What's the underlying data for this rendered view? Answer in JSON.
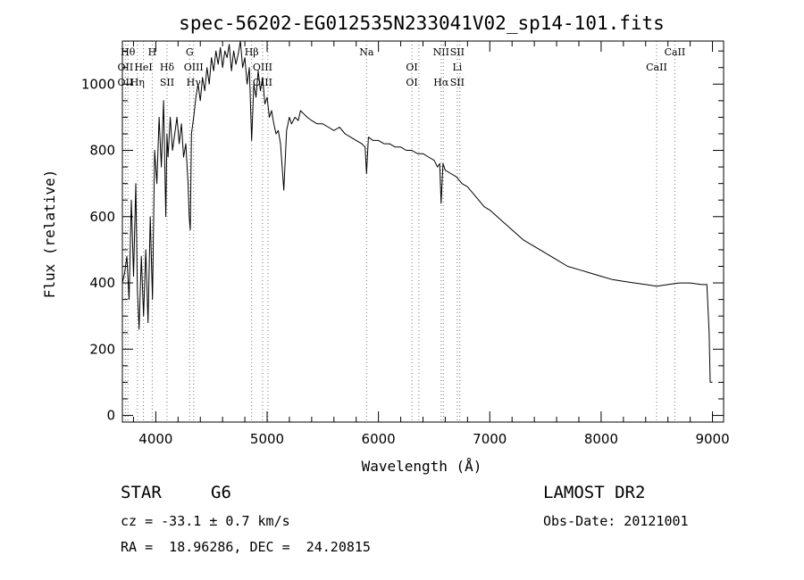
{
  "chart_data": {
    "type": "line",
    "title": "spec-56202-EG012535N233041V02_sp14-101.fits",
    "xlabel": "Wavelength (Å)",
    "ylabel": "Flux (relative)",
    "xlim": [
      3700,
      9100
    ],
    "ylim": [
      -20,
      1130
    ],
    "x_ticks": [
      4000,
      5000,
      6000,
      7000,
      8000,
      9000
    ],
    "x_tick_labels": [
      "4000",
      "5000",
      "6000",
      "7000",
      "8000",
      "9000"
    ],
    "y_ticks": [
      0,
      200,
      400,
      600,
      800,
      1000
    ],
    "y_tick_labels": [
      "0",
      "200",
      "400",
      "600",
      "800",
      "1000"
    ],
    "grid": false,
    "series": [
      {
        "x": [
          3700,
          3720,
          3740,
          3760,
          3780,
          3800,
          3820,
          3835,
          3850,
          3870,
          3890,
          3910,
          3930,
          3950,
          3970,
          3990,
          4010,
          4030,
          4050,
          4070,
          4090,
          4100,
          4110,
          4130,
          4150,
          4170,
          4190,
          4210,
          4230,
          4250,
          4270,
          4290,
          4300,
          4310,
          4320,
          4340,
          4360,
          4380,
          4400,
          4420,
          4440,
          4460,
          4480,
          4500,
          4520,
          4540,
          4560,
          4580,
          4600,
          4620,
          4640,
          4660,
          4680,
          4700,
          4720,
          4740,
          4760,
          4780,
          4800,
          4820,
          4840,
          4861,
          4880,
          4900,
          4920,
          4940,
          4960,
          4980,
          5000,
          5020,
          5040,
          5060,
          5080,
          5100,
          5120,
          5150,
          5175,
          5200,
          5220,
          5250,
          5280,
          5300,
          5330,
          5360,
          5400,
          5450,
          5500,
          5550,
          5600,
          5650,
          5700,
          5750,
          5800,
          5850,
          5880,
          5893,
          5910,
          5950,
          6000,
          6050,
          6100,
          6150,
          6200,
          6250,
          6300,
          6350,
          6400,
          6450,
          6500,
          6530,
          6550,
          6563,
          6580,
          6600,
          6650,
          6700,
          6750,
          6800,
          6850,
          6900,
          6950,
          7000,
          7100,
          7200,
          7300,
          7400,
          7500,
          7600,
          7700,
          7800,
          7900,
          8000,
          8100,
          8200,
          8300,
          8400,
          8500,
          8600,
          8700,
          8800,
          8900,
          8950,
          8970,
          8980,
          9000
        ],
        "values": [
          400,
          430,
          480,
          350,
          650,
          420,
          700,
          380,
          260,
          480,
          300,
          500,
          280,
          600,
          350,
          800,
          700,
          900,
          750,
          950,
          600,
          850,
          780,
          900,
          800,
          850,
          900,
          820,
          880,
          780,
          820,
          700,
          600,
          560,
          850,
          900,
          960,
          1000,
          950,
          1020,
          980,
          1050,
          1000,
          1080,
          1040,
          1100,
          1060,
          1110,
          1050,
          1100,
          1080,
          1120,
          1040,
          1100,
          1060,
          1090,
          1130,
          1050,
          1080,
          1000,
          1050,
          830,
          1000,
          960,
          1040,
          980,
          1020,
          940,
          960,
          900,
          920,
          880,
          850,
          860,
          820,
          680,
          860,
          900,
          880,
          900,
          890,
          920,
          910,
          900,
          890,
          880,
          880,
          870,
          860,
          870,
          850,
          840,
          830,
          820,
          810,
          730,
          840,
          830,
          830,
          820,
          820,
          810,
          810,
          800,
          800,
          790,
          790,
          780,
          770,
          750,
          760,
          640,
          760,
          740,
          730,
          720,
          700,
          690,
          670,
          650,
          630,
          620,
          590,
          560,
          530,
          510,
          490,
          470,
          450,
          440,
          430,
          420,
          410,
          405,
          400,
          395,
          390,
          395,
          400,
          400,
          395,
          395,
          250,
          100,
          100
        ]
      }
    ],
    "line_markers": [
      {
        "wavelength": 3727,
        "labels": [
          "OII",
          "OII"
        ],
        "levels": [
          2,
          3
        ]
      },
      {
        "wavelength": 3750,
        "labels": [
          "Hθ"
        ],
        "levels": [
          1
        ]
      },
      {
        "wavelength": 3835,
        "labels": [
          "Hη"
        ],
        "levels": [
          3
        ]
      },
      {
        "wavelength": 3889,
        "labels": [
          "HeI"
        ],
        "levels": [
          2
        ]
      },
      {
        "wavelength": 3968,
        "labels": [
          "H"
        ],
        "levels": [
          1
        ]
      },
      {
        "wavelength": 4101,
        "labels": [
          "Hδ",
          "SII"
        ],
        "levels": [
          2,
          3
        ]
      },
      {
        "wavelength": 4304,
        "labels": [
          "G"
        ],
        "levels": [
          1
        ]
      },
      {
        "wavelength": 4340,
        "labels": [
          "OIII",
          "Hγ"
        ],
        "levels": [
          2,
          3
        ]
      },
      {
        "wavelength": 4861,
        "labels": [
          "Hβ"
        ],
        "levels": [
          1
        ]
      },
      {
        "wavelength": 4959,
        "labels": [
          "OIII",
          "OIII"
        ],
        "levels": [
          2,
          3
        ]
      },
      {
        "wavelength": 5007,
        "labels": [],
        "levels": []
      },
      {
        "wavelength": 5893,
        "labels": [
          "Na"
        ],
        "levels": [
          1
        ]
      },
      {
        "wavelength": 6300,
        "labels": [
          "OI",
          "OI"
        ],
        "levels": [
          2,
          3
        ]
      },
      {
        "wavelength": 6363,
        "labels": [],
        "levels": []
      },
      {
        "wavelength": 6563,
        "labels": [
          "NII",
          "Hα"
        ],
        "levels": [
          1,
          3
        ]
      },
      {
        "wavelength": 6583,
        "labels": [],
        "levels": []
      },
      {
        "wavelength": 6708,
        "labels": [
          "SII",
          "Li",
          "SII"
        ],
        "levels": [
          1,
          2,
          3
        ]
      },
      {
        "wavelength": 6731,
        "labels": [],
        "levels": []
      },
      {
        "wavelength": 8498,
        "labels": [
          "CaII"
        ],
        "levels": [
          2
        ]
      },
      {
        "wavelength": 8662,
        "labels": [
          "CaII"
        ],
        "levels": [
          1
        ]
      }
    ]
  },
  "info": {
    "class": "STAR",
    "subclass": "G6",
    "survey": "LAMOST DR2",
    "cz": "cz = -33.1 ± 0.7 km/s",
    "obs_date": "Obs-Date: 20121001",
    "coords": "RA =  18.96286, DEC =  24.20815"
  }
}
